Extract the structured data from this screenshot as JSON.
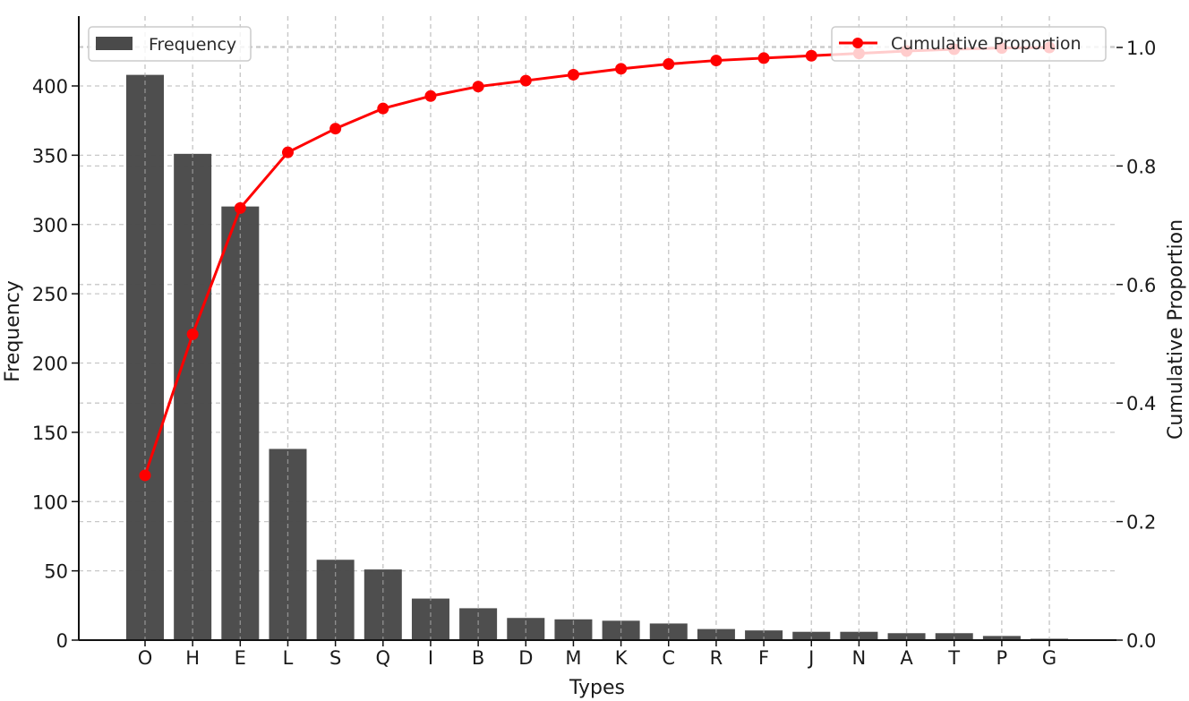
{
  "chart_data": {
    "type": "bar+line",
    "title": "",
    "xlabel": "Types",
    "ylabel": "Frequency",
    "y2label": "Cumulative Proportion",
    "categories": [
      "O",
      "H",
      "E",
      "L",
      "S",
      "Q",
      "I",
      "B",
      "D",
      "M",
      "K",
      "C",
      "R",
      "F",
      "J",
      "N",
      "A",
      "T",
      "P",
      "G"
    ],
    "series": [
      {
        "name": "Frequency",
        "type": "bar",
        "axis": "left",
        "color": "#4a4a4a",
        "values": [
          408,
          351,
          313,
          138,
          58,
          51,
          30,
          23,
          16,
          15,
          14,
          12,
          8,
          7,
          6,
          6,
          5,
          5,
          3,
          1
        ]
      },
      {
        "name": "Cumulative Proportion",
        "type": "line",
        "axis": "right",
        "color": "#ff0000",
        "marker": "circle",
        "values": [
          0.278,
          0.516,
          0.729,
          0.823,
          0.863,
          0.897,
          0.918,
          0.934,
          0.944,
          0.954,
          0.964,
          0.972,
          0.978,
          0.982,
          0.986,
          0.99,
          0.994,
          0.997,
          0.999,
          1.0
        ]
      }
    ],
    "ylim": [
      0,
      440
    ],
    "yticks": [
      0,
      50,
      100,
      150,
      200,
      250,
      300,
      350,
      400
    ],
    "y2lim": [
      0.0,
      1.05
    ],
    "y2ticks": [
      "0.0",
      "0.2",
      "0.4",
      "0.6",
      "0.8",
      "1.0"
    ],
    "grid": true,
    "grid_style": "dashed",
    "legend": [
      {
        "label": "Frequency",
        "position": "upper left"
      },
      {
        "label": "Cumulative Proportion",
        "position": "upper right"
      }
    ]
  },
  "legend": {
    "frequency_label": "Frequency",
    "cumulative_label": "Cumulative Proportion"
  },
  "axes": {
    "xlabel": "Types",
    "ylabel": "Frequency",
    "y2label": "Cumulative Proportion"
  }
}
